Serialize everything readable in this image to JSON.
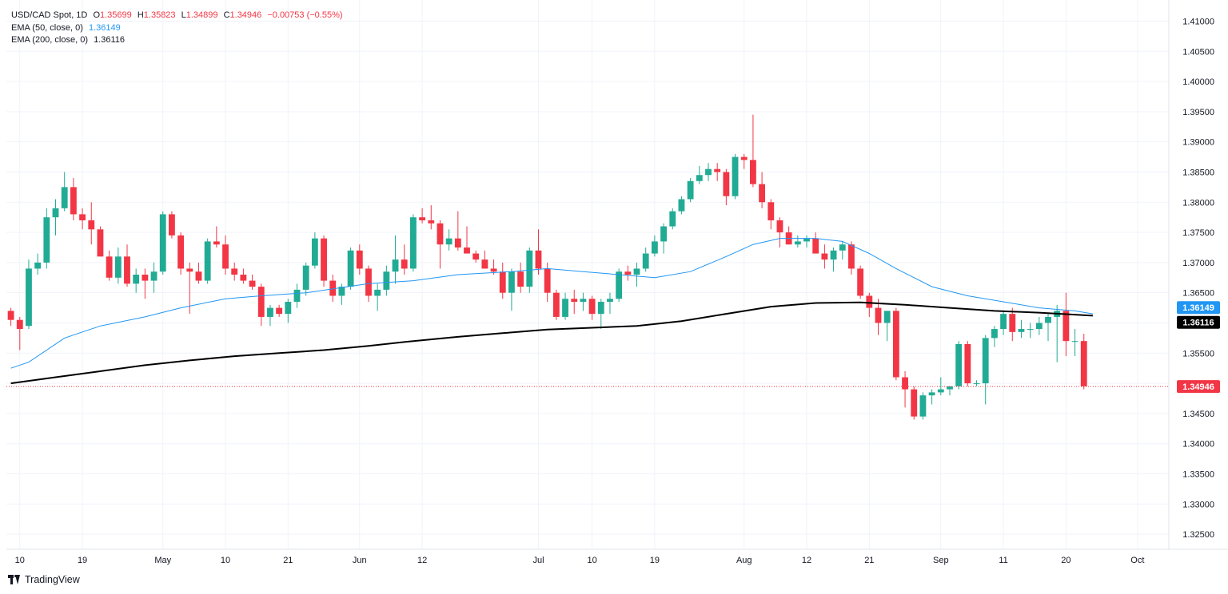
{
  "header": {
    "symbol": "USD/CAD Spot, 1D",
    "ohlc": {
      "open_label": "O",
      "open": "1.35699",
      "high_label": "H",
      "high": "1.35823",
      "low_label": "L",
      "low": "1.34899",
      "close_label": "C",
      "close": "1.34946",
      "change": "−0.00753 (−0.55%)"
    },
    "ema50": {
      "label": "EMA (50, close, 0)",
      "value": "1.36149"
    },
    "ema200": {
      "label": "EMA (200, close, 0)",
      "value": "1.36116"
    }
  },
  "footer": {
    "brand": "TradingView"
  },
  "price_tags": [
    {
      "label": "1.36149",
      "value": 1.36149,
      "bg": "#2196f3",
      "fg": "#ffffff"
    },
    {
      "label": "1.36116",
      "value": 1.36116,
      "bg": "#000000",
      "fg": "#ffffff"
    },
    {
      "label": "1.34946",
      "value": 1.34946,
      "bg": "#f23645",
      "fg": "#ffffff"
    }
  ],
  "colors": {
    "up": "#22ab94",
    "down": "#f23645",
    "ema50": "#2196f3",
    "ema200": "#000000",
    "grid": "#f0f3fa"
  },
  "chart_data": {
    "type": "candlestick",
    "title": "USD/CAD Spot, 1D",
    "ylim": [
      1.3225,
      1.4135
    ],
    "yticks": [
      "1.41000",
      "1.40500",
      "1.40000",
      "1.39500",
      "1.39000",
      "1.38500",
      "1.38000",
      "1.37500",
      "1.37000",
      "1.36500",
      "1.36000",
      "1.35500",
      "1.35000",
      "1.34500",
      "1.34000",
      "1.33500",
      "1.33000",
      "1.32500"
    ],
    "xticks": [
      {
        "label": "10",
        "i": 1
      },
      {
        "label": "19",
        "i": 8
      },
      {
        "label": "May",
        "i": 17
      },
      {
        "label": "10",
        "i": 24
      },
      {
        "label": "21",
        "i": 31
      },
      {
        "label": "Jun",
        "i": 39
      },
      {
        "label": "12",
        "i": 46
      },
      {
        "label": "Jul",
        "i": 59
      },
      {
        "label": "10",
        "i": 65
      },
      {
        "label": "19",
        "i": 72
      },
      {
        "label": "Aug",
        "i": 82
      },
      {
        "label": "12",
        "i": 89
      },
      {
        "label": "21",
        "i": 96
      },
      {
        "label": "Sep",
        "i": 104
      },
      {
        "label": "11",
        "i": 111
      },
      {
        "label": "20",
        "i": 118
      },
      {
        "label": "Oct",
        "i": 126
      }
    ],
    "bars_total": 130,
    "candles": [
      [
        1.362,
        1.3625,
        1.3595,
        1.3605
      ],
      [
        1.3605,
        1.361,
        1.3555,
        1.359
      ],
      [
        1.3595,
        1.3705,
        1.359,
        1.369
      ],
      [
        1.369,
        1.3715,
        1.368,
        1.37
      ],
      [
        1.37,
        1.379,
        1.369,
        1.3775
      ],
      [
        1.3775,
        1.3805,
        1.3745,
        1.379
      ],
      [
        1.379,
        1.385,
        1.3785,
        1.3825
      ],
      [
        1.3825,
        1.384,
        1.377,
        1.378
      ],
      [
        1.378,
        1.379,
        1.3755,
        1.377
      ],
      [
        1.377,
        1.38,
        1.373,
        1.3755
      ],
      [
        1.3755,
        1.376,
        1.371,
        1.371
      ],
      [
        1.371,
        1.372,
        1.367,
        1.3675
      ],
      [
        1.3675,
        1.3725,
        1.3665,
        1.371
      ],
      [
        1.371,
        1.373,
        1.366,
        1.3665
      ],
      [
        1.3665,
        1.369,
        1.365,
        1.368
      ],
      [
        1.368,
        1.369,
        1.364,
        1.367
      ],
      [
        1.367,
        1.37,
        1.365,
        1.3685
      ],
      [
        1.3685,
        1.3785,
        1.368,
        1.378
      ],
      [
        1.378,
        1.3785,
        1.374,
        1.3745
      ],
      [
        1.3745,
        1.375,
        1.368,
        1.369
      ],
      [
        1.369,
        1.37,
        1.3615,
        1.3685
      ],
      [
        1.3685,
        1.37,
        1.3665,
        1.367
      ],
      [
        1.367,
        1.374,
        1.3665,
        1.3735
      ],
      [
        1.3735,
        1.376,
        1.3725,
        1.373
      ],
      [
        1.373,
        1.3745,
        1.368,
        1.369
      ],
      [
        1.369,
        1.37,
        1.367,
        1.368
      ],
      [
        1.368,
        1.369,
        1.3665,
        1.367
      ],
      [
        1.367,
        1.368,
        1.3655,
        1.366
      ],
      [
        1.366,
        1.3665,
        1.3595,
        1.361
      ],
      [
        1.361,
        1.363,
        1.3595,
        1.3625
      ],
      [
        1.3625,
        1.363,
        1.361,
        1.3615
      ],
      [
        1.3615,
        1.364,
        1.36,
        1.3635
      ],
      [
        1.3635,
        1.3665,
        1.3625,
        1.3655
      ],
      [
        1.3655,
        1.37,
        1.3645,
        1.3695
      ],
      [
        1.3695,
        1.375,
        1.369,
        1.374
      ],
      [
        1.374,
        1.3745,
        1.366,
        1.367
      ],
      [
        1.367,
        1.368,
        1.3635,
        1.3645
      ],
      [
        1.3645,
        1.3665,
        1.363,
        1.366
      ],
      [
        1.366,
        1.3725,
        1.3655,
        1.372
      ],
      [
        1.372,
        1.373,
        1.368,
        1.369
      ],
      [
        1.369,
        1.3695,
        1.3635,
        1.3645
      ],
      [
        1.3645,
        1.3665,
        1.362,
        1.3655
      ],
      [
        1.3655,
        1.3695,
        1.3645,
        1.3685
      ],
      [
        1.3685,
        1.3745,
        1.3665,
        1.3705
      ],
      [
        1.3705,
        1.373,
        1.368,
        1.369
      ],
      [
        1.369,
        1.378,
        1.3685,
        1.3775
      ],
      [
        1.3775,
        1.379,
        1.3765,
        1.377
      ],
      [
        1.377,
        1.3795,
        1.3755,
        1.3765
      ],
      [
        1.3765,
        1.377,
        1.369,
        1.373
      ],
      [
        1.373,
        1.3755,
        1.372,
        1.374
      ],
      [
        1.374,
        1.3785,
        1.372,
        1.3725
      ],
      [
        1.3725,
        1.376,
        1.3715,
        1.3715
      ],
      [
        1.3715,
        1.372,
        1.37,
        1.3705
      ],
      [
        1.3705,
        1.372,
        1.369,
        1.369
      ],
      [
        1.369,
        1.3705,
        1.368,
        1.3685
      ],
      [
        1.3685,
        1.37,
        1.364,
        1.365
      ],
      [
        1.365,
        1.369,
        1.362,
        1.3685
      ],
      [
        1.3685,
        1.37,
        1.365,
        1.366
      ],
      [
        1.366,
        1.3725,
        1.365,
        1.372
      ],
      [
        1.372,
        1.3755,
        1.368,
        1.369
      ],
      [
        1.369,
        1.37,
        1.3635,
        1.365
      ],
      [
        1.365,
        1.3655,
        1.3605,
        1.361
      ],
      [
        1.361,
        1.365,
        1.3605,
        1.364
      ],
      [
        1.364,
        1.3655,
        1.3615,
        1.3635
      ],
      [
        1.3635,
        1.365,
        1.362,
        1.364
      ],
      [
        1.364,
        1.3645,
        1.3605,
        1.3615
      ],
      [
        1.3615,
        1.364,
        1.359,
        1.3635
      ],
      [
        1.3635,
        1.365,
        1.3615,
        1.364
      ],
      [
        1.364,
        1.369,
        1.3635,
        1.3685
      ],
      [
        1.3685,
        1.3695,
        1.367,
        1.368
      ],
      [
        1.368,
        1.37,
        1.366,
        1.369
      ],
      [
        1.369,
        1.3725,
        1.3685,
        1.3715
      ],
      [
        1.3715,
        1.3745,
        1.371,
        1.3735
      ],
      [
        1.3735,
        1.3765,
        1.3715,
        1.376
      ],
      [
        1.376,
        1.379,
        1.3755,
        1.3785
      ],
      [
        1.3785,
        1.381,
        1.378,
        1.3805
      ],
      [
        1.3805,
        1.384,
        1.38,
        1.3835
      ],
      [
        1.3835,
        1.386,
        1.383,
        1.3845
      ],
      [
        1.3845,
        1.3865,
        1.3835,
        1.3855
      ],
      [
        1.3855,
        1.3865,
        1.3835,
        1.385
      ],
      [
        1.385,
        1.3855,
        1.3795,
        1.381
      ],
      [
        1.381,
        1.388,
        1.3805,
        1.3875
      ],
      [
        1.3875,
        1.388,
        1.3855,
        1.387
      ],
      [
        1.387,
        1.3945,
        1.3825,
        1.383
      ],
      [
        1.383,
        1.385,
        1.379,
        1.38
      ],
      [
        1.38,
        1.3805,
        1.3755,
        1.377
      ],
      [
        1.377,
        1.3775,
        1.3725,
        1.375
      ],
      [
        1.375,
        1.376,
        1.373,
        1.373
      ],
      [
        1.373,
        1.3745,
        1.3725,
        1.3735
      ],
      [
        1.3735,
        1.3745,
        1.3725,
        1.374
      ],
      [
        1.374,
        1.375,
        1.3715,
        1.3715
      ],
      [
        1.3715,
        1.373,
        1.369,
        1.3705
      ],
      [
        1.3705,
        1.3725,
        1.3685,
        1.372
      ],
      [
        1.372,
        1.3735,
        1.3705,
        1.373
      ],
      [
        1.373,
        1.3735,
        1.368,
        1.369
      ],
      [
        1.369,
        1.3695,
        1.364,
        1.3645
      ],
      [
        1.3645,
        1.365,
        1.361,
        1.3625
      ],
      [
        1.3625,
        1.364,
        1.358,
        1.36
      ],
      [
        1.36,
        1.362,
        1.357,
        1.362
      ],
      [
        1.362,
        1.3625,
        1.3505,
        1.351
      ],
      [
        1.351,
        1.352,
        1.346,
        1.349
      ],
      [
        1.349,
        1.3495,
        1.344,
        1.3445
      ],
      [
        1.3445,
        1.3485,
        1.344,
        1.348
      ],
      [
        1.348,
        1.349,
        1.3465,
        1.3485
      ],
      [
        1.3485,
        1.351,
        1.348,
        1.349
      ],
      [
        1.349,
        1.3495,
        1.348,
        1.3495
      ],
      [
        1.3495,
        1.357,
        1.349,
        1.3565
      ],
      [
        1.3565,
        1.357,
        1.3495,
        1.35
      ],
      [
        1.35,
        1.3505,
        1.3495,
        1.35
      ],
      [
        1.35,
        1.358,
        1.3465,
        1.3575
      ],
      [
        1.3575,
        1.3595,
        1.356,
        1.359
      ],
      [
        1.359,
        1.362,
        1.358,
        1.3615
      ],
      [
        1.3615,
        1.3625,
        1.357,
        1.3585
      ],
      [
        1.3585,
        1.3605,
        1.3575,
        1.359
      ],
      [
        1.359,
        1.36,
        1.3575,
        1.359
      ],
      [
        1.359,
        1.361,
        1.358,
        1.36
      ],
      [
        1.36,
        1.3615,
        1.357,
        1.361
      ],
      [
        1.361,
        1.363,
        1.3535,
        1.362
      ],
      [
        1.362,
        1.365,
        1.3545,
        1.357
      ],
      [
        1.357,
        1.359,
        1.3545,
        1.357
      ],
      [
        1.357,
        1.3582,
        1.349,
        1.3495
      ]
    ],
    "ema50": [
      [
        0,
        1.3525
      ],
      [
        2,
        1.3535
      ],
      [
        6,
        1.3575
      ],
      [
        10,
        1.3595
      ],
      [
        15,
        1.361
      ],
      [
        19,
        1.3625
      ],
      [
        24,
        1.364
      ],
      [
        28,
        1.3645
      ],
      [
        33,
        1.365
      ],
      [
        40,
        1.3665
      ],
      [
        45,
        1.367
      ],
      [
        50,
        1.368
      ],
      [
        56,
        1.3685
      ],
      [
        60,
        1.369
      ],
      [
        64,
        1.3685
      ],
      [
        68,
        1.368
      ],
      [
        72,
        1.3675
      ],
      [
        76,
        1.3685
      ],
      [
        80,
        1.371
      ],
      [
        83,
        1.373
      ],
      [
        86,
        1.374
      ],
      [
        90,
        1.374
      ],
      [
        93,
        1.3735
      ],
      [
        96,
        1.3715
      ],
      [
        99,
        1.369
      ],
      [
        103,
        1.366
      ],
      [
        107,
        1.3645
      ],
      [
        111,
        1.3635
      ],
      [
        115,
        1.3625
      ],
      [
        119,
        1.362
      ],
      [
        121,
        1.3615
      ]
    ],
    "ema200": [
      [
        0,
        1.35
      ],
      [
        5,
        1.351
      ],
      [
        10,
        1.352
      ],
      [
        15,
        1.353
      ],
      [
        20,
        1.3538
      ],
      [
        25,
        1.3545
      ],
      [
        30,
        1.355
      ],
      [
        35,
        1.3555
      ],
      [
        40,
        1.3562
      ],
      [
        45,
        1.357
      ],
      [
        50,
        1.3577
      ],
      [
        55,
        1.3583
      ],
      [
        60,
        1.3589
      ],
      [
        65,
        1.3592
      ],
      [
        70,
        1.3595
      ],
      [
        75,
        1.3603
      ],
      [
        80,
        1.3615
      ],
      [
        85,
        1.3627
      ],
      [
        90,
        1.3633
      ],
      [
        95,
        1.3634
      ],
      [
        100,
        1.363
      ],
      [
        105,
        1.3625
      ],
      [
        110,
        1.362
      ],
      [
        115,
        1.3617
      ],
      [
        121,
        1.3612
      ]
    ],
    "last_price": 1.34946
  }
}
